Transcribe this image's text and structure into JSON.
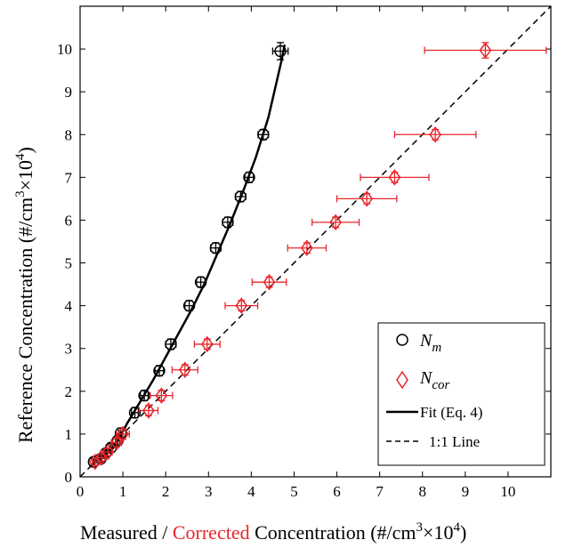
{
  "chart_data": {
    "type": "scatter",
    "xlim": [
      0,
      11
    ],
    "ylim": [
      0,
      11
    ],
    "xticks": [
      0,
      1,
      2,
      3,
      4,
      5,
      6,
      7,
      8,
      9,
      10
    ],
    "yticks": [
      0,
      1,
      2,
      3,
      4,
      5,
      6,
      7,
      8,
      9,
      10
    ],
    "xlabel": {
      "part1": "Measured / ",
      "part2": "Corrected",
      "part3": " Concentration (#/cm",
      "sup1": "3",
      "part4": "×10",
      "sup2": "4",
      "part5": ")"
    },
    "ylabel": {
      "part1": "Reference Concentration (#/cm",
      "sup1": "3",
      "part2": "×10",
      "sup2": "4",
      "part3": ")"
    },
    "colors": {
      "nm": "#000000",
      "ncor": "#e8262b",
      "corrected_word": "#e8262b"
    },
    "series": [
      {
        "name": "N_m",
        "legend_base": "N",
        "legend_sub": "m",
        "marker": "circle",
        "x": [
          0.32,
          0.48,
          0.6,
          0.72,
          0.88,
          0.95,
          1.28,
          1.5,
          1.85,
          2.12,
          2.55,
          2.82,
          3.17,
          3.45,
          3.75,
          3.95,
          4.28,
          4.68
        ],
        "y": [
          0.35,
          0.42,
          0.55,
          0.68,
          0.85,
          1.02,
          1.5,
          1.9,
          2.48,
          3.1,
          4.0,
          4.55,
          5.35,
          5.95,
          6.55,
          7.0,
          8.0,
          9.95
        ],
        "xerr": [
          0.03,
          0.03,
          0.03,
          0.04,
          0.05,
          0.05,
          0.08,
          0.09,
          0.1,
          0.12,
          0.1,
          0.1,
          0.12,
          0.12,
          0.12,
          0.1,
          0.12,
          0.18
        ],
        "yerr": [
          0.08,
          0.08,
          0.08,
          0.1,
          0.1,
          0.12,
          0.12,
          0.12,
          0.12,
          0.12,
          0.12,
          0.12,
          0.12,
          0.12,
          0.12,
          0.12,
          0.12,
          0.2
        ]
      },
      {
        "name": "N_cor",
        "legend_base": "N",
        "legend_sub": "cor",
        "marker": "diamond",
        "x": [
          0.35,
          0.5,
          0.65,
          0.85,
          1.0,
          1.6,
          1.9,
          2.45,
          2.97,
          3.77,
          4.42,
          5.3,
          5.97,
          6.7,
          7.35,
          8.3,
          9.47
        ],
        "y": [
          0.35,
          0.45,
          0.58,
          0.8,
          1.0,
          1.55,
          1.9,
          2.5,
          3.1,
          4.0,
          4.55,
          5.35,
          5.95,
          6.5,
          7.0,
          8.0,
          9.97
        ],
        "xerr": [
          0.06,
          0.08,
          0.1,
          0.12,
          0.15,
          0.22,
          0.26,
          0.3,
          0.3,
          0.38,
          0.4,
          0.45,
          0.55,
          0.7,
          0.8,
          0.95,
          1.42
        ],
        "yerr": [
          0.08,
          0.08,
          0.08,
          0.1,
          0.12,
          0.12,
          0.12,
          0.12,
          0.12,
          0.12,
          0.12,
          0.12,
          0.12,
          0.12,
          0.12,
          0.12,
          0.18
        ]
      }
    ],
    "fit": {
      "name": "Fit (Eq. 4)",
      "x": [
        0.28,
        0.5,
        0.8,
        1.1,
        1.4,
        1.7,
        2.0,
        2.3,
        2.6,
        2.9,
        3.2,
        3.5,
        3.8,
        4.1,
        4.4,
        4.7,
        4.78
      ],
      "y": [
        0.28,
        0.45,
        0.7,
        1.25,
        1.75,
        2.25,
        2.8,
        3.35,
        3.9,
        4.5,
        5.2,
        5.9,
        6.65,
        7.45,
        8.4,
        9.7,
        10.1
      ]
    },
    "identity_line": {
      "name": "1:1 Line",
      "x": [
        0,
        11
      ],
      "y": [
        0,
        11
      ]
    },
    "legend_position": "bottom-right",
    "grid": false
  }
}
